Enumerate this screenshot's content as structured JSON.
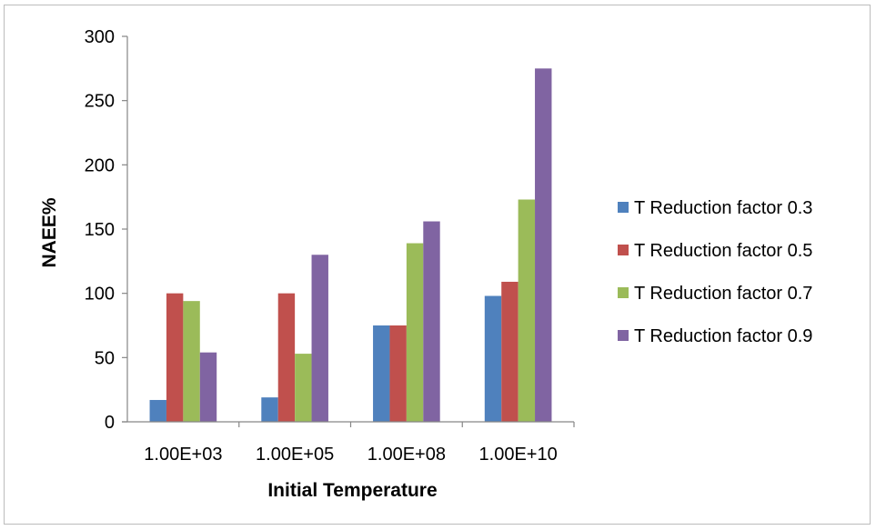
{
  "chart_data": {
    "type": "bar",
    "xlabel": "Initial Temperature",
    "ylabel": "NAEE%",
    "categories": [
      "1.00E+03",
      "1.00E+05",
      "1.00E+08",
      "1.00E+10"
    ],
    "ylim": [
      0,
      300
    ],
    "yticks": [
      0,
      50,
      100,
      150,
      200,
      250,
      300
    ],
    "grid": false,
    "legend_position": "right",
    "series": [
      {
        "name": "T Reduction factor 0.3",
        "color": "#4f81bd",
        "values": [
          17,
          19,
          75,
          98
        ]
      },
      {
        "name": "T Reduction factor 0.5",
        "color": "#c0504d",
        "values": [
          100,
          100,
          75,
          109
        ]
      },
      {
        "name": "T Reduction factor 0.7",
        "color": "#9bbb59",
        "values": [
          94,
          53,
          139,
          173
        ]
      },
      {
        "name": "T Reduction factor 0.9",
        "color": "#8064a2",
        "values": [
          54,
          130,
          156,
          275
        ]
      }
    ]
  }
}
